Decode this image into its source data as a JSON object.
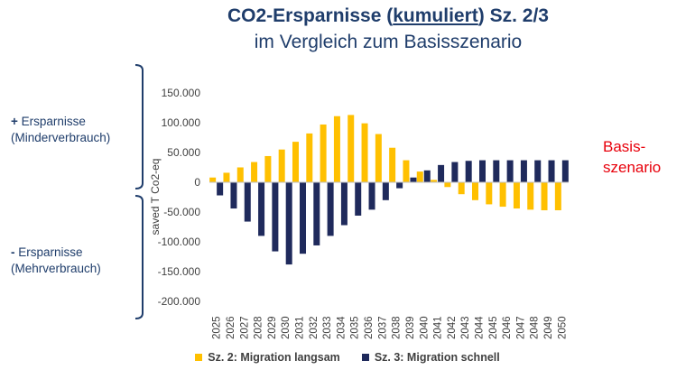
{
  "header": {
    "title_main": "CO2-Ersparnisse (",
    "title_kum": "kumuliert",
    "title_tail": ") Sz. 2/3",
    "subtitle": "im Vergleich zum Basisszenario"
  },
  "side_labels": {
    "plus_sign": "+",
    "plus_text": " Ersparnisse",
    "plus_sub": "(Minderverbrauch)",
    "minus_sign": "-",
    "minus_text": " Ersparnisse",
    "minus_sub": "(Mehrverbrauch)"
  },
  "basis": {
    "line1": "Basis-",
    "line2": "szenario"
  },
  "colors": {
    "sz2": "#ffc000",
    "sz3": "#1f2a5c",
    "bracket": "#1f3d6b",
    "basis_text": "#e8000b"
  },
  "chart_data": {
    "type": "bar",
    "ylabel": "saved T Co2-eq",
    "ylim": [
      -200000,
      150000
    ],
    "yticks": [
      150000,
      100000,
      50000,
      0,
      -50000,
      -100000,
      -150000,
      -200000
    ],
    "ytick_labels": [
      "150.000",
      "100.000",
      "50.000",
      "0",
      "-50.000",
      "-100.000",
      "-150.000",
      "-200.000"
    ],
    "categories": [
      "2025",
      "2026",
      "2027",
      "2028",
      "2029",
      "2030",
      "2031",
      "2032",
      "2033",
      "2034",
      "2035",
      "2036",
      "2037",
      "2038",
      "2039",
      "2040",
      "2041",
      "2042",
      "2043",
      "2044",
      "2045",
      "2046",
      "2047",
      "2048",
      "2049",
      "2050"
    ],
    "series": [
      {
        "name": "Sz. 2: Migration langsam",
        "color": "#ffc000",
        "values": [
          8000,
          16000,
          25000,
          34000,
          44000,
          55000,
          68000,
          82000,
          97000,
          111000,
          113000,
          99000,
          81000,
          58000,
          37000,
          18000,
          4000,
          -8000,
          -20000,
          -30000,
          -37000,
          -41000,
          -44000,
          -46000,
          -47000,
          -47000
        ]
      },
      {
        "name": "Sz. 3: Migration schnell",
        "color": "#1f2a5c",
        "values": [
          -22000,
          -44000,
          -66000,
          -90000,
          -116000,
          -138000,
          -120000,
          -106000,
          -90000,
          -72000,
          -56000,
          -46000,
          -30000,
          -10000,
          8000,
          20000,
          29000,
          34000,
          36000,
          37000,
          37000,
          37000,
          37000,
          37000,
          37000,
          37000
        ]
      }
    ],
    "legend_position": "bottom",
    "grid": false
  }
}
